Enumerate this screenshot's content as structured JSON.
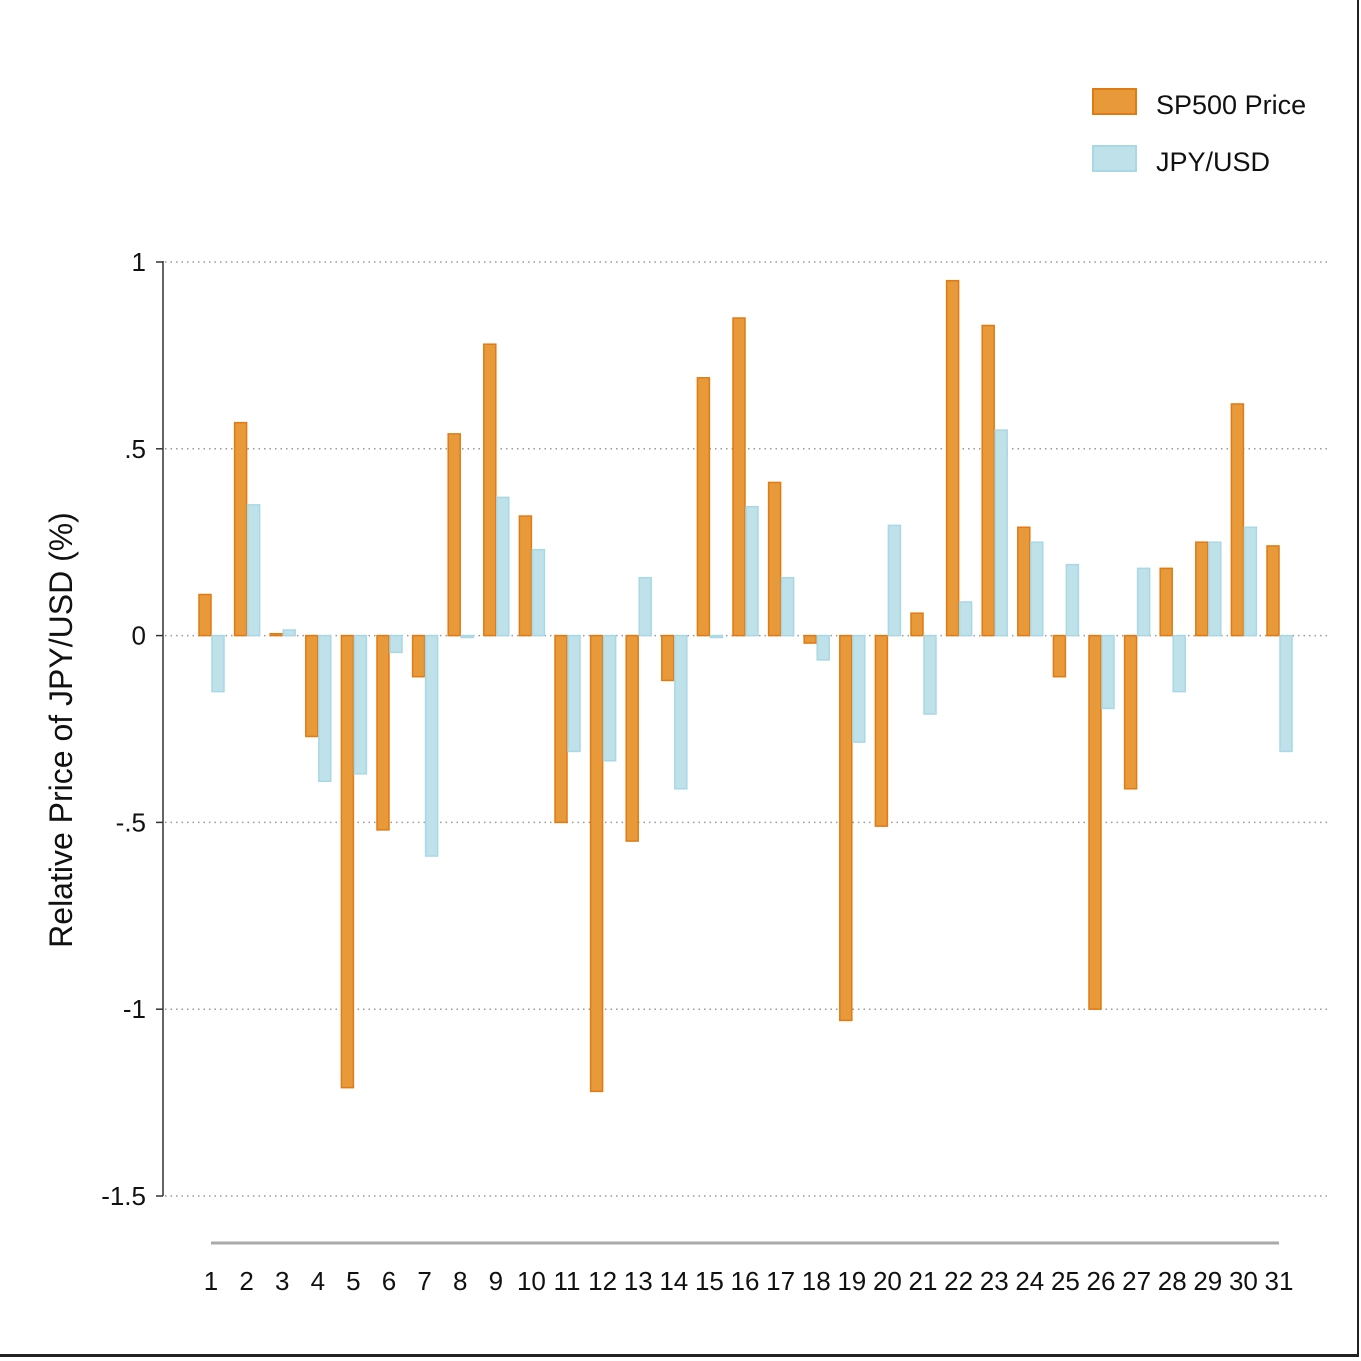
{
  "colors": {
    "sp500_fill": "#E8993A",
    "sp500_stroke": "#E07B14",
    "jpy_fill": "#BFE1EA",
    "jpy_stroke": "#A9D8E4",
    "grid": "#9a9a9a",
    "axis": "#333333"
  },
  "chart_data": {
    "type": "bar",
    "title": "",
    "xlabel": "",
    "ylabel": "Relative Price of JPY/USD (%)",
    "ylim": [
      -1.5,
      1
    ],
    "yticks": [
      1,
      0.5,
      0,
      -0.5,
      -1,
      -1.5
    ],
    "ytick_labels": [
      "1",
      ".5",
      "0",
      "-.5",
      "-1",
      "-1.5"
    ],
    "grid": true,
    "legend_position": "top-right",
    "categories": [
      "1",
      "2",
      "3",
      "4",
      "5",
      "6",
      "7",
      "8",
      "9",
      "10",
      "11",
      "12",
      "13",
      "14",
      "15",
      "16",
      "17",
      "18",
      "19",
      "20",
      "21",
      "22",
      "23",
      "24",
      "25",
      "26",
      "27",
      "28",
      "29",
      "30",
      "31"
    ],
    "series": [
      {
        "name": "SP500 Price",
        "values": [
          0.11,
          0.57,
          0.005,
          -0.27,
          -1.21,
          -0.52,
          -0.11,
          0.54,
          0.78,
          0.32,
          -0.5,
          -1.22,
          -0.55,
          -0.12,
          0.69,
          0.85,
          0.41,
          -0.02,
          -1.03,
          -0.51,
          0.06,
          0.95,
          0.83,
          0.29,
          -0.11,
          -1.0,
          -0.41,
          0.18,
          0.25,
          0.62,
          0.24
        ]
      },
      {
        "name": "JPY/USD",
        "values": [
          -0.15,
          0.35,
          0.015,
          -0.39,
          -0.37,
          -0.045,
          -0.59,
          -0.005,
          0.37,
          0.23,
          -0.31,
          -0.335,
          0.155,
          -0.41,
          -0.005,
          0.345,
          0.155,
          -0.065,
          -0.285,
          0.295,
          -0.21,
          0.09,
          0.55,
          0.25,
          0.19,
          -0.195,
          0.18,
          -0.15,
          0.25,
          0.29,
          -0.31
        ]
      }
    ]
  }
}
